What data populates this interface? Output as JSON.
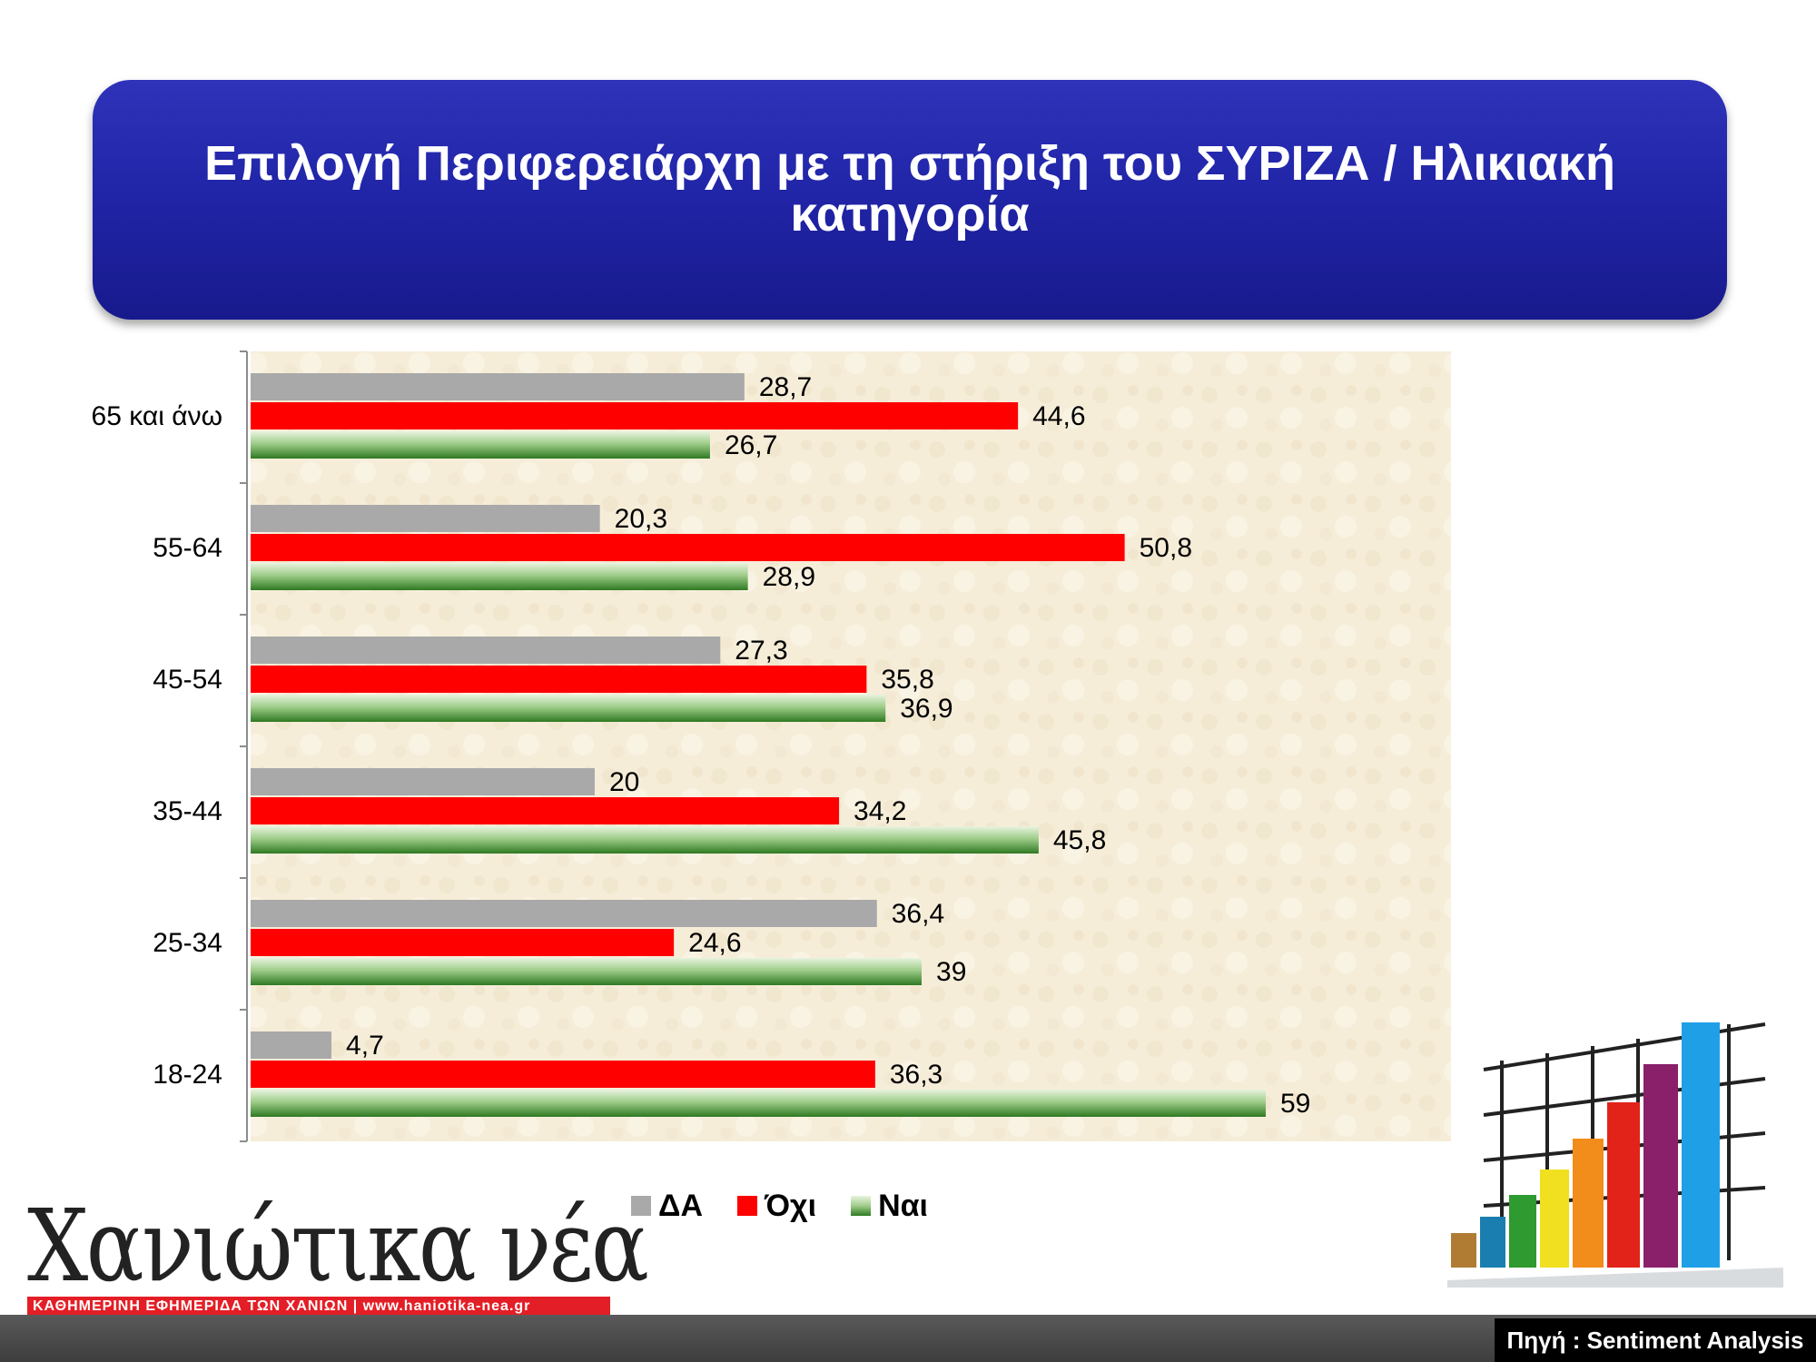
{
  "header": {
    "title": "Επιλογή Περιφερειάρχη με τη στήριξη του ΣΥΡΙΖΑ / Ηλικιακή κατηγορία"
  },
  "chart_data": {
    "type": "bar",
    "orientation": "horizontal",
    "categories": [
      "65 και άνω",
      "55-64",
      "45-54",
      "35-44",
      "25-34",
      "18-24"
    ],
    "series": [
      {
        "name": "ΔΑ",
        "color": "#a9a9a9",
        "values": [
          28.7,
          20.3,
          27.3,
          20,
          36.4,
          4.7
        ],
        "labels": [
          "28,7",
          "20,3",
          "27,3",
          "20",
          "36,4",
          "4,7"
        ]
      },
      {
        "name": "Όχι",
        "color": "#ff0000",
        "values": [
          44.6,
          50.8,
          35.8,
          34.2,
          24.6,
          36.3
        ],
        "labels": [
          "44,6",
          "50,8",
          "35,8",
          "34,2",
          "24,6",
          "36,3"
        ]
      },
      {
        "name": "Ναι",
        "color": "#4a9a3a",
        "values": [
          26.7,
          28.9,
          36.9,
          45.8,
          39,
          59
        ],
        "labels": [
          "26,7",
          "28,9",
          "36,9",
          "45,8",
          "39",
          "59"
        ]
      }
    ],
    "xlim": [
      0,
      70
    ],
    "grid": false,
    "legend_position": "bottom"
  },
  "branding": {
    "logo_text": "Χανιώτικα νέα",
    "logo_tagline": "ΚΑΘΗΜΕΡΙΝΗ ΕΦΗΜΕΡΙΔΑ ΤΩΝ ΧΑΝΙΩΝ   |   www.haniotika-nea.gr"
  },
  "footer": {
    "source": "Πηγή : Sentiment Analysis"
  }
}
